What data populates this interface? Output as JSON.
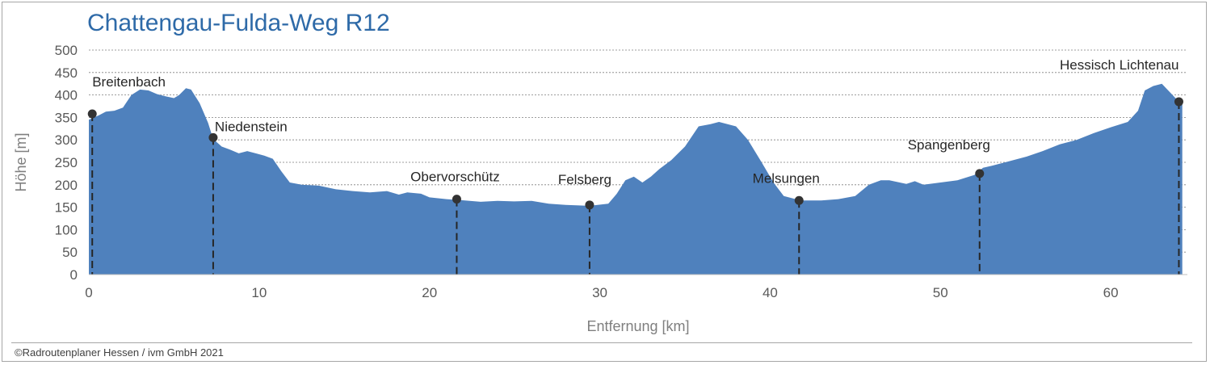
{
  "chart_data": {
    "type": "area",
    "title": "Chattengau-Fulda-Weg  R12",
    "xlabel": "Entfernung [km]",
    "ylabel": "Höhe [m]",
    "xlim": [
      0,
      64.5
    ],
    "ylim": [
      0,
      500
    ],
    "xticks": [
      0,
      10,
      20,
      30,
      40,
      50,
      60
    ],
    "yticks": [
      0,
      50,
      100,
      150,
      200,
      250,
      300,
      350,
      400,
      450,
      500
    ],
    "grid": "horizontal-dashed",
    "fill_color": "#4f81bd",
    "profile": [
      [
        0,
        345
      ],
      [
        0.6,
        355
      ],
      [
        1.0,
        363
      ],
      [
        1.5,
        365
      ],
      [
        2.0,
        372
      ],
      [
        2.5,
        400
      ],
      [
        3.0,
        412
      ],
      [
        3.5,
        410
      ],
      [
        4.0,
        402
      ],
      [
        4.5,
        397
      ],
      [
        5.0,
        393
      ],
      [
        5.3,
        400
      ],
      [
        5.7,
        415
      ],
      [
        6.0,
        412
      ],
      [
        6.5,
        382
      ],
      [
        7.0,
        338
      ],
      [
        7.3,
        302
      ],
      [
        7.8,
        285
      ],
      [
        8.3,
        278
      ],
      [
        8.8,
        270
      ],
      [
        9.3,
        275
      ],
      [
        9.8,
        270
      ],
      [
        10.3,
        265
      ],
      [
        10.8,
        258
      ],
      [
        11.3,
        230
      ],
      [
        11.8,
        205
      ],
      [
        12.5,
        200
      ],
      [
        13.5,
        198
      ],
      [
        14.5,
        190
      ],
      [
        15.5,
        186
      ],
      [
        16.5,
        183
      ],
      [
        17.5,
        186
      ],
      [
        18.2,
        178
      ],
      [
        18.7,
        183
      ],
      [
        19.5,
        180
      ],
      [
        20.0,
        172
      ],
      [
        21.0,
        168
      ],
      [
        21.8,
        166
      ],
      [
        23.0,
        162
      ],
      [
        24.0,
        164
      ],
      [
        25.0,
        163
      ],
      [
        26.0,
        164
      ],
      [
        27.0,
        158
      ],
      [
        28.0,
        155
      ],
      [
        29.4,
        153
      ],
      [
        30.5,
        158
      ],
      [
        31.0,
        180
      ],
      [
        31.5,
        210
      ],
      [
        32.0,
        218
      ],
      [
        32.5,
        205
      ],
      [
        33.0,
        218
      ],
      [
        33.5,
        235
      ],
      [
        34.2,
        255
      ],
      [
        35.0,
        285
      ],
      [
        35.8,
        330
      ],
      [
        36.5,
        335
      ],
      [
        37.0,
        340
      ],
      [
        37.5,
        335
      ],
      [
        38.0,
        330
      ],
      [
        38.7,
        300
      ],
      [
        39.5,
        250
      ],
      [
        40.2,
        205
      ],
      [
        40.8,
        175
      ],
      [
        41.8,
        165
      ],
      [
        43.0,
        165
      ],
      [
        44.0,
        168
      ],
      [
        45.0,
        175
      ],
      [
        45.8,
        200
      ],
      [
        46.5,
        210
      ],
      [
        47.0,
        210
      ],
      [
        48.0,
        202
      ],
      [
        48.5,
        208
      ],
      [
        49.0,
        200
      ],
      [
        50.0,
        205
      ],
      [
        51.0,
        210
      ],
      [
        52.0,
        222
      ],
      [
        52.5,
        238
      ],
      [
        53.0,
        242
      ],
      [
        54.0,
        252
      ],
      [
        55.0,
        262
      ],
      [
        56.0,
        275
      ],
      [
        57.0,
        290
      ],
      [
        58.0,
        300
      ],
      [
        59.0,
        315
      ],
      [
        60.0,
        328
      ],
      [
        61.0,
        340
      ],
      [
        61.6,
        365
      ],
      [
        62.0,
        410
      ],
      [
        62.5,
        420
      ],
      [
        63.0,
        425
      ],
      [
        63.5,
        405
      ],
      [
        64.0,
        385
      ],
      [
        64.2,
        380
      ]
    ],
    "places": [
      {
        "name": "Breitenbach",
        "km": 0.2,
        "alt": 358,
        "label_dx": 0,
        "label_anchor": "start",
        "label_dy": -34
      },
      {
        "name": "Niedenstein",
        "km": 7.3,
        "alt": 305,
        "label_dx": 2,
        "label_anchor": "start",
        "label_dy": -8
      },
      {
        "name": "Obervorschütz",
        "km": 21.6,
        "alt": 168,
        "label_dx": -2,
        "label_anchor": "middle",
        "label_dy": -22
      },
      {
        "name": "Felsberg",
        "km": 29.4,
        "alt": 155,
        "label_dx": -6,
        "label_anchor": "middle",
        "label_dy": -26
      },
      {
        "name": "Melsungen",
        "km": 41.7,
        "alt": 165,
        "label_dx": -16,
        "label_anchor": "middle",
        "label_dy": -22
      },
      {
        "name": "Spangenberg",
        "km": 52.3,
        "alt": 225,
        "label_dx": -38,
        "label_anchor": "middle",
        "label_dy": -30
      },
      {
        "name": "Hessisch Lichtenau",
        "km": 64.0,
        "alt": 385,
        "label_dx": 0,
        "label_anchor": "end",
        "label_dy": -40
      }
    ]
  },
  "footer": {
    "copyright": "©Radroutenplaner  Hessen  /  ivm  GmbH  2021"
  }
}
